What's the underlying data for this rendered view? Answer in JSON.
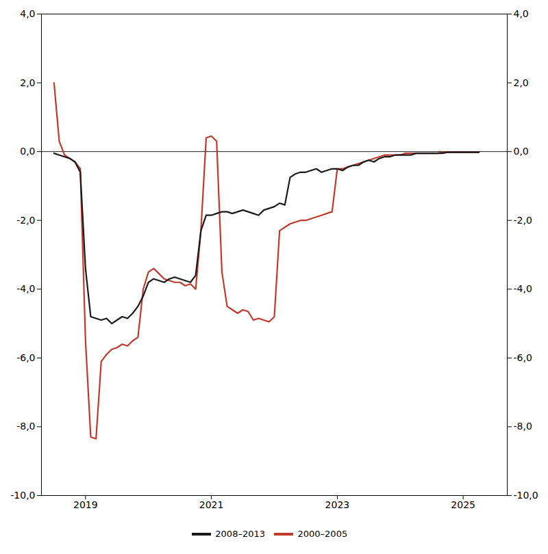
{
  "chart_data": {
    "type": "line",
    "title": "",
    "x": [
      2018.5,
      2018.583,
      2018.667,
      2018.75,
      2018.833,
      2018.917,
      2019.0,
      2019.083,
      2019.167,
      2019.25,
      2019.333,
      2019.417,
      2019.5,
      2019.583,
      2019.667,
      2019.75,
      2019.833,
      2019.917,
      2020.0,
      2020.083,
      2020.167,
      2020.25,
      2020.333,
      2020.417,
      2020.5,
      2020.583,
      2020.667,
      2020.75,
      2020.833,
      2020.917,
      2021.0,
      2021.083,
      2021.167,
      2021.25,
      2021.333,
      2021.417,
      2021.5,
      2021.583,
      2021.667,
      2021.75,
      2021.833,
      2021.917,
      2022.0,
      2022.083,
      2022.167,
      2022.25,
      2022.333,
      2022.417,
      2022.5,
      2022.583,
      2022.667,
      2022.75,
      2022.833,
      2022.917,
      2023.0,
      2023.083,
      2023.167,
      2023.25,
      2023.333,
      2023.417,
      2023.5,
      2023.583,
      2023.667,
      2023.75,
      2023.833,
      2023.917,
      2024.0,
      2024.083,
      2024.167,
      2024.25,
      2024.333,
      2024.417,
      2024.5,
      2024.583,
      2024.667,
      2024.75,
      2024.833,
      2024.917,
      2025.0,
      2025.083,
      2025.167,
      2025.25
    ],
    "series": [
      {
        "name": "2008–2013",
        "color": "#1a1a1a",
        "values": [
          -0.05,
          -0.1,
          -0.15,
          -0.2,
          -0.3,
          -0.6,
          -3.4,
          -4.8,
          -4.85,
          -4.9,
          -4.85,
          -5.0,
          -4.9,
          -4.8,
          -4.85,
          -4.7,
          -4.5,
          -4.2,
          -3.8,
          -3.7,
          -3.75,
          -3.8,
          -3.7,
          -3.65,
          -3.7,
          -3.75,
          -3.8,
          -3.6,
          -2.3,
          -1.85,
          -1.85,
          -1.8,
          -1.75,
          -1.75,
          -1.8,
          -1.75,
          -1.7,
          -1.75,
          -1.8,
          -1.85,
          -1.7,
          -1.65,
          -1.6,
          -1.5,
          -1.55,
          -0.75,
          -0.65,
          -0.6,
          -0.6,
          -0.55,
          -0.5,
          -0.6,
          -0.55,
          -0.5,
          -0.5,
          -0.55,
          -0.45,
          -0.4,
          -0.4,
          -0.3,
          -0.25,
          -0.3,
          -0.2,
          -0.15,
          -0.15,
          -0.1,
          -0.1,
          -0.1,
          -0.1,
          -0.05,
          -0.05,
          -0.05,
          -0.05,
          -0.05,
          -0.05,
          -0.02,
          -0.02,
          -0.02,
          -0.02,
          -0.02,
          -0.02,
          -0.02
        ]
      },
      {
        "name": "2000–2005",
        "color": "#c0392b",
        "values": [
          2.0,
          0.3,
          -0.1,
          -0.2,
          -0.3,
          -0.5,
          -5.5,
          -8.3,
          -8.35,
          -6.1,
          -5.9,
          -5.75,
          -5.7,
          -5.6,
          -5.65,
          -5.5,
          -5.4,
          -4.0,
          -3.5,
          -3.4,
          -3.55,
          -3.7,
          -3.75,
          -3.8,
          -3.8,
          -3.9,
          -3.85,
          -4.0,
          -2.3,
          0.4,
          0.45,
          0.3,
          -3.5,
          -4.5,
          -4.6,
          -4.7,
          -4.6,
          -4.65,
          -4.9,
          -4.85,
          -4.9,
          -4.95,
          -4.8,
          -2.3,
          -2.2,
          -2.1,
          -2.05,
          -2.0,
          -2.0,
          -1.95,
          -1.9,
          -1.85,
          -1.8,
          -1.75,
          -0.5,
          -0.5,
          -0.45,
          -0.4,
          -0.35,
          -0.3,
          -0.25,
          -0.2,
          -0.15,
          -0.1,
          -0.1,
          -0.1,
          -0.1,
          -0.05,
          -0.05,
          -0.05,
          -0.05,
          -0.05,
          -0.05,
          -0.05,
          -0.02,
          -0.02,
          -0.02,
          -0.02,
          -0.02,
          -0.02,
          -0.02,
          -0.02
        ]
      }
    ],
    "xlim": [
      2018.3,
      2025.7
    ],
    "xticks": [
      2019,
      2021,
      2023,
      2025
    ],
    "ylim": [
      -10,
      4
    ],
    "yticks": [
      {
        "value": -10,
        "label": "-10,0"
      },
      {
        "value": -8,
        "label": "-8,0"
      },
      {
        "value": -6,
        "label": "-6,0"
      },
      {
        "value": -4,
        "label": "-4,0"
      },
      {
        "value": -2,
        "label": "-2,0"
      },
      {
        "value": 0,
        "label": "0,0"
      },
      {
        "value": 2,
        "label": "2,0"
      },
      {
        "value": 4,
        "label": "4,0"
      }
    ],
    "grid": false,
    "legend": "bottom"
  }
}
